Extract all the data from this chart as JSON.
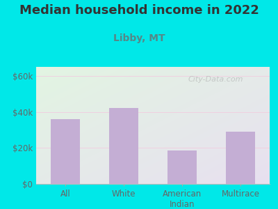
{
  "title": "Median household income in 2022",
  "subtitle": "Libby, MT",
  "categories": [
    "All",
    "White",
    "American\nIndian",
    "Multirace"
  ],
  "values": [
    36000,
    42000,
    18500,
    29000
  ],
  "bar_color": "#c4aed4",
  "background_outer": "#00e8e8",
  "bg_color_topleft": "#e2f5e2",
  "bg_color_bottomright": "#e8e0f0",
  "yticks": [
    0,
    20000,
    40000,
    60000
  ],
  "ylim": [
    0,
    65000
  ],
  "title_fontsize": 13,
  "subtitle_fontsize": 10,
  "title_color": "#333333",
  "subtitle_color": "#558888",
  "tick_color": "#666666",
  "watermark": "City-Data.com"
}
